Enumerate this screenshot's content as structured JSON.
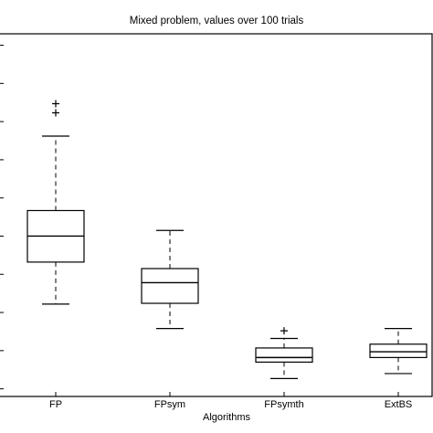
{
  "chart_data": {
    "type": "boxplot",
    "title": "Mixed problem, values over 100 trials",
    "xlabel": "Algorithms",
    "ylabel": "",
    "categories": [
      "FP",
      "FPsym",
      "FPsymth",
      "ExtBS"
    ],
    "ylim": [
      0,
      9.5
    ],
    "y_ticks": [
      0.2,
      1.2,
      2.2,
      3.2,
      4.2,
      5.2,
      6.2,
      7.2,
      8.2,
      9.2
    ],
    "y_tick_labels_visible": false,
    "grid": false,
    "legend": "none",
    "boxes": [
      {
        "category": "FP",
        "whisker_low": 2.42,
        "q1": 3.52,
        "median": 4.2,
        "q3": 4.87,
        "whisker_high": 6.82,
        "outliers": [
          7.43,
          7.67
        ]
      },
      {
        "category": "FPsym",
        "whisker_low": 1.78,
        "q1": 2.44,
        "median": 2.98,
        "q3": 3.35,
        "whisker_high": 4.35,
        "outliers": []
      },
      {
        "category": "FPsymth",
        "whisker_low": 0.47,
        "q1": 0.9,
        "median": 1.02,
        "q3": 1.27,
        "whisker_high": 1.52,
        "outliers": [
          1.72
        ]
      },
      {
        "category": "ExtBS",
        "whisker_low": 0.6,
        "q1": 1.02,
        "median": 1.17,
        "q3": 1.37,
        "whisker_high": 1.78,
        "outliers": []
      }
    ]
  },
  "colors": {
    "box": "#000000",
    "background": "#ffffff"
  }
}
